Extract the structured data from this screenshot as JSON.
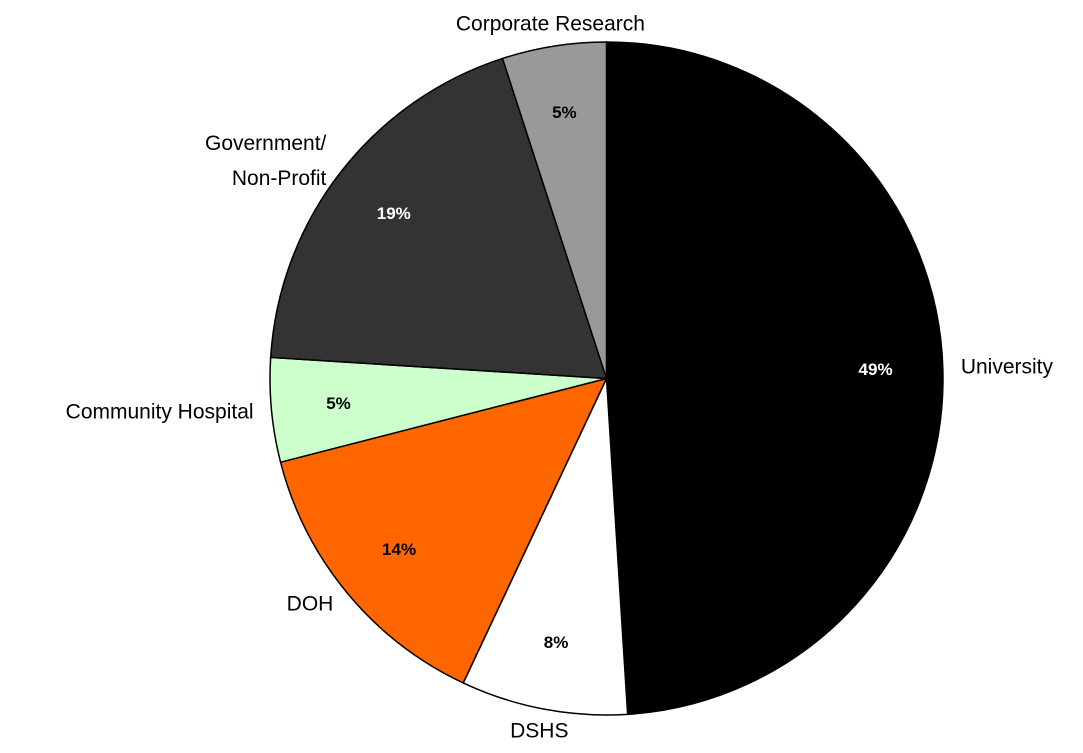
{
  "chart_data": {
    "type": "pie",
    "categories": [
      "University",
      "DSHS",
      "DOH",
      "Community Hospital",
      "Government/\nNon-Profit",
      "Corporate Research"
    ],
    "values": [
      49,
      8,
      14,
      5,
      19,
      5
    ],
    "value_labels": [
      "49%",
      "8%",
      "14%",
      "5%",
      "19%",
      "5%"
    ],
    "colors": [
      "#000000",
      "#ffffff",
      "#ff6600",
      "#ccffcc",
      "#333333",
      "#999999"
    ]
  }
}
